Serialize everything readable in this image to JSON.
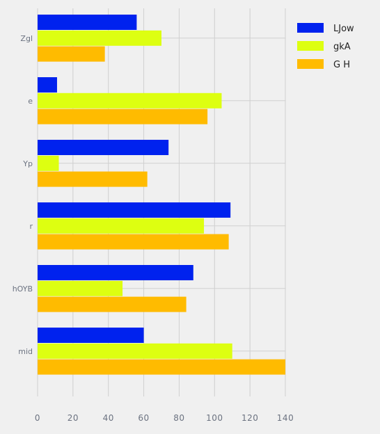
{
  "chart_data": {
    "type": "bar",
    "orientation": "horizontal",
    "categories": [
      "Zgl",
      "e",
      "Yp",
      "r",
      "hOYB",
      "mid"
    ],
    "series": [
      {
        "name": "LJow",
        "color": "#0022ee",
        "values": [
          56,
          11,
          74,
          109,
          88,
          60
        ]
      },
      {
        "name": "gkA",
        "color": "#ddff11",
        "values": [
          70,
          104,
          12,
          94,
          48,
          110
        ]
      },
      {
        "name": "G H",
        "color": "#ffbb00",
        "values": [
          38,
          96,
          62,
          108,
          84,
          140
        ]
      }
    ],
    "xlim": [
      0,
      140
    ],
    "xticks": [
      0,
      20,
      40,
      60,
      80,
      100,
      120,
      140
    ],
    "grid": true,
    "legend": "top-right"
  }
}
